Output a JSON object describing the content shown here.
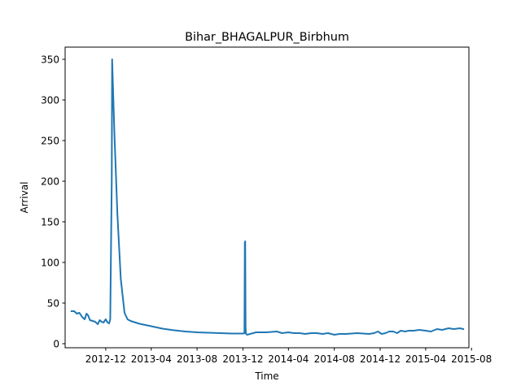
{
  "chart_data": {
    "type": "line",
    "title": "Bihar_BHAGALPUR_Birbhum",
    "xlabel": "Time",
    "ylabel": "Arrival",
    "x_axis_type": "date",
    "xlim": [
      "2012-08-15",
      "2015-07-25"
    ],
    "ylim": [
      -5,
      365
    ],
    "x_ticks": [
      "2012-12",
      "2013-04",
      "2013-08",
      "2013-12",
      "2014-04",
      "2014-08",
      "2014-12",
      "2015-04",
      "2015-08"
    ],
    "y_ticks": [
      0,
      50,
      100,
      150,
      200,
      250,
      300,
      350
    ],
    "grid": false,
    "legend": false,
    "line_color": "#1f77b4",
    "series": [
      {
        "x": [
          "2012-09-01",
          "2012-09-08",
          "2012-09-15",
          "2012-09-22",
          "2012-09-29",
          "2012-10-06",
          "2012-10-11",
          "2012-10-15",
          "2012-10-20",
          "2012-10-27",
          "2012-11-03",
          "2012-11-10",
          "2012-11-15",
          "2012-11-20",
          "2012-11-25",
          "2012-12-01",
          "2012-12-06",
          "2012-12-10",
          "2012-12-13",
          "2012-12-17",
          "2012-12-18",
          "2012-12-24",
          "2013-01-01",
          "2013-01-10",
          "2013-01-20",
          "2013-01-28",
          "2013-02-05",
          "2013-02-15",
          "2013-03-01",
          "2013-04-01",
          "2013-05-01",
          "2013-06-01",
          "2013-07-01",
          "2013-08-01",
          "2013-09-01",
          "2013-10-01",
          "2013-11-01",
          "2013-12-01",
          "2013-12-05",
          "2013-12-06",
          "2013-12-07",
          "2013-12-08",
          "2013-12-09",
          "2013-12-12",
          "2013-12-20",
          "2014-01-05",
          "2014-02-01",
          "2014-03-01",
          "2014-03-15",
          "2014-04-01",
          "2014-04-15",
          "2014-05-01",
          "2014-05-15",
          "2014-06-01",
          "2014-06-15",
          "2014-07-01",
          "2014-07-15",
          "2014-08-01",
          "2014-08-15",
          "2014-09-01",
          "2014-10-01",
          "2014-11-01",
          "2014-11-15",
          "2014-11-25",
          "2014-12-05",
          "2014-12-15",
          "2014-12-25",
          "2015-01-05",
          "2015-01-15",
          "2015-01-25",
          "2015-02-05",
          "2015-02-15",
          "2015-03-01",
          "2015-03-15",
          "2015-04-01",
          "2015-04-15",
          "2015-05-01",
          "2015-05-15",
          "2015-06-01",
          "2015-06-15",
          "2015-07-01",
          "2015-07-10"
        ],
        "values": [
          40,
          40,
          37,
          38,
          33,
          30,
          37,
          35,
          29,
          28,
          27,
          24,
          29,
          27,
          26,
          30,
          26,
          25,
          30,
          200,
          350,
          260,
          160,
          80,
          38,
          30,
          28,
          26.5,
          24.5,
          21.5,
          18.5,
          16.5,
          15,
          14,
          13.5,
          13,
          12.5,
          12.5,
          13,
          125,
          126,
          20,
          12,
          11,
          12,
          14,
          14,
          15,
          13,
          14,
          13,
          13,
          12,
          13,
          13,
          12,
          13,
          11,
          12,
          12,
          13,
          12,
          13,
          15,
          12,
          13,
          15,
          15,
          13,
          16,
          15,
          16,
          16,
          17,
          16,
          15,
          18,
          17,
          19,
          18,
          19,
          18
        ]
      }
    ]
  }
}
